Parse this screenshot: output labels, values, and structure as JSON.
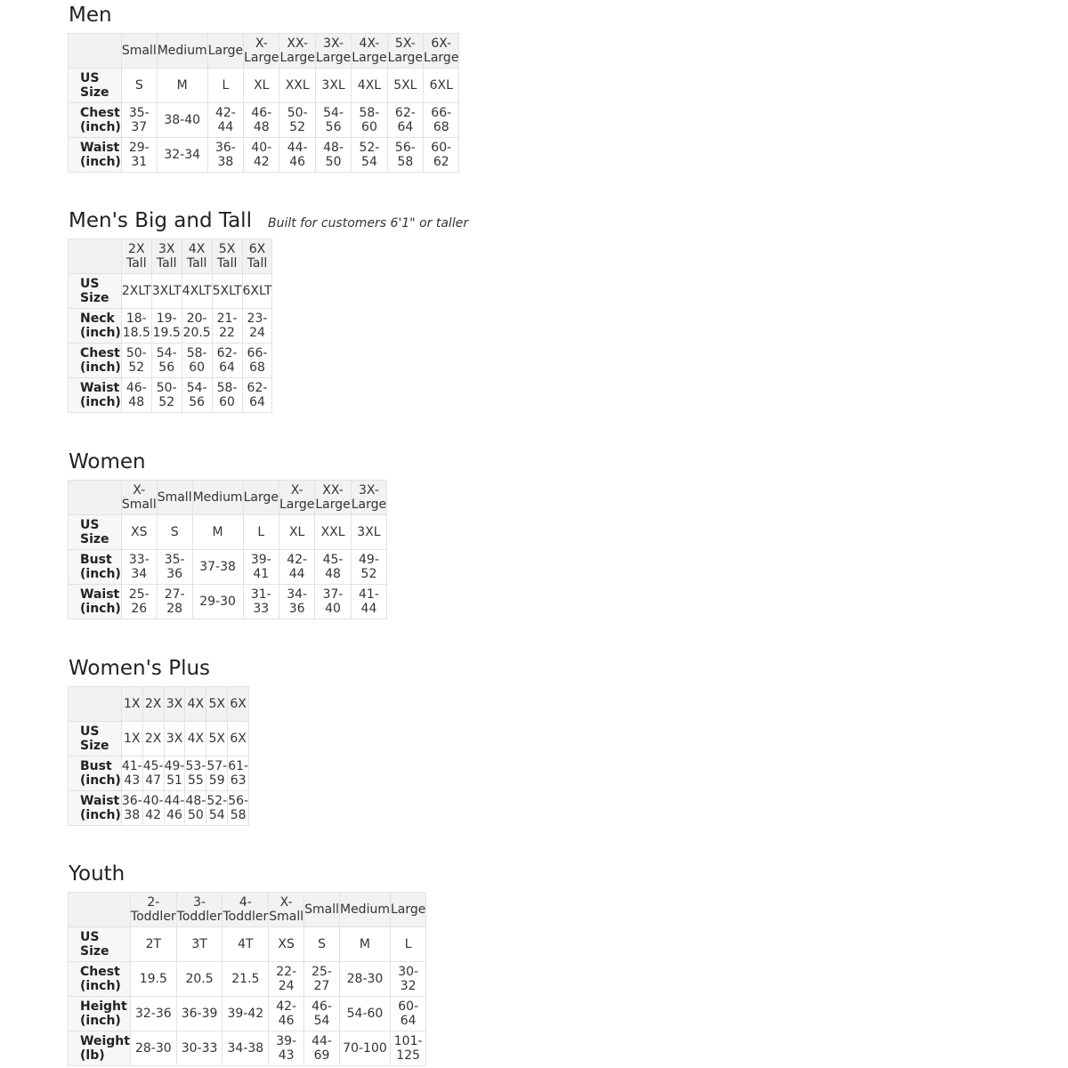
{
  "sections": [
    {
      "title": "Men",
      "subtitle": "",
      "headers": [
        "Small",
        "Medium",
        "Large",
        "X-Large",
        "XX-Large",
        "3X-Large",
        "4X-Large",
        "5X-Large",
        "6X-Large"
      ],
      "rows": [
        {
          "label": "US Size",
          "cells": [
            "S",
            "M",
            "L",
            "XL",
            "XXL",
            "3XL",
            "4XL",
            "5XL",
            "6XL"
          ]
        },
        {
          "label": "Chest (inch)",
          "cells": [
            "35-37",
            "38-40",
            "42-44",
            "46-48",
            "50-52",
            "54-56",
            "58-60",
            "62-64",
            "66-68"
          ]
        },
        {
          "label": "Waist (inch)",
          "cells": [
            "29-31",
            "32-34",
            "36-38",
            "40-42",
            "44-46",
            "48-50",
            "52-54",
            "56-58",
            "60-62"
          ]
        }
      ]
    },
    {
      "title": "Men's Big and Tall",
      "subtitle": "Built for customers 6'1\" or taller",
      "headers": [
        "2X Tall",
        "3X Tall",
        "4X Tall",
        "5X Tall",
        "6X Tall"
      ],
      "rows": [
        {
          "label": "US Size",
          "cells": [
            "2XLT",
            "3XLT",
            "4XLT",
            "5XLT",
            "6XLT"
          ]
        },
        {
          "label": "Neck (inch)",
          "cells": [
            "18-18.5",
            "19-19.5",
            "20-20.5",
            "21-22",
            "23-24"
          ]
        },
        {
          "label": "Chest (inch)",
          "cells": [
            "50-52",
            "54-56",
            "58-60",
            "62-64",
            "66-68"
          ]
        },
        {
          "label": "Waist (inch)",
          "cells": [
            "46-48",
            "50-52",
            "54-56",
            "58-60",
            "62-64"
          ]
        }
      ]
    },
    {
      "title": "Women",
      "subtitle": "",
      "headers": [
        "X-Small",
        "Small",
        "Medium",
        "Large",
        "X-Large",
        "XX-Large",
        "3X-Large"
      ],
      "rows": [
        {
          "label": "US Size",
          "cells": [
            "XS",
            "S",
            "M",
            "L",
            "XL",
            "XXL",
            "3XL"
          ]
        },
        {
          "label": "Bust (inch)",
          "cells": [
            "33-34",
            "35-36",
            "37-38",
            "39-41",
            "42-44",
            "45-48",
            "49-52"
          ]
        },
        {
          "label": "Waist (inch)",
          "cells": [
            "25-26",
            "27-28",
            "29-30",
            "31-33",
            "34-36",
            "37-40",
            "41-44"
          ]
        }
      ]
    },
    {
      "title": "Women's  Plus",
      "subtitle": "",
      "headers": [
        "1X",
        "2X",
        "3X",
        "4X",
        "5X",
        "6X"
      ],
      "rows": [
        {
          "label": "US Size",
          "cells": [
            "1X",
            "2X",
            "3X",
            "4X",
            "5X",
            "6X"
          ]
        },
        {
          "label": "Bust (inch)",
          "cells": [
            "41-43",
            "45-47",
            "49-51",
            "53-55",
            "57-59",
            "61-63"
          ]
        },
        {
          "label": "Waist (inch)",
          "cells": [
            "36-38",
            "40-42",
            "44-46",
            "48-50",
            "52-54",
            "56-58"
          ]
        }
      ]
    },
    {
      "title": "Youth",
      "subtitle": "",
      "headers": [
        "2-Toddler",
        "3-Toddler",
        "4-Toddler",
        "X-Small",
        "Small",
        "Medium",
        "Large"
      ],
      "rows": [
        {
          "label": "US Size",
          "cells": [
            "2T",
            "3T",
            "4T",
            "XS",
            "S",
            "M",
            "L"
          ]
        },
        {
          "label": "Chest (inch)",
          "cells": [
            "19.5",
            "20.5",
            "21.5",
            "22-24",
            "25-27",
            "28-30",
            "30-32"
          ]
        },
        {
          "label": "Height (inch)",
          "cells": [
            "32-36",
            "36-39",
            "39-42",
            "42-46",
            "46-54",
            "54-60",
            "60-64"
          ]
        },
        {
          "label": "Weight (lb)",
          "cells": [
            "28-30",
            "30-33",
            "34-38",
            "39-43",
            "44-69",
            "70-100",
            "101-125"
          ]
        }
      ]
    }
  ]
}
